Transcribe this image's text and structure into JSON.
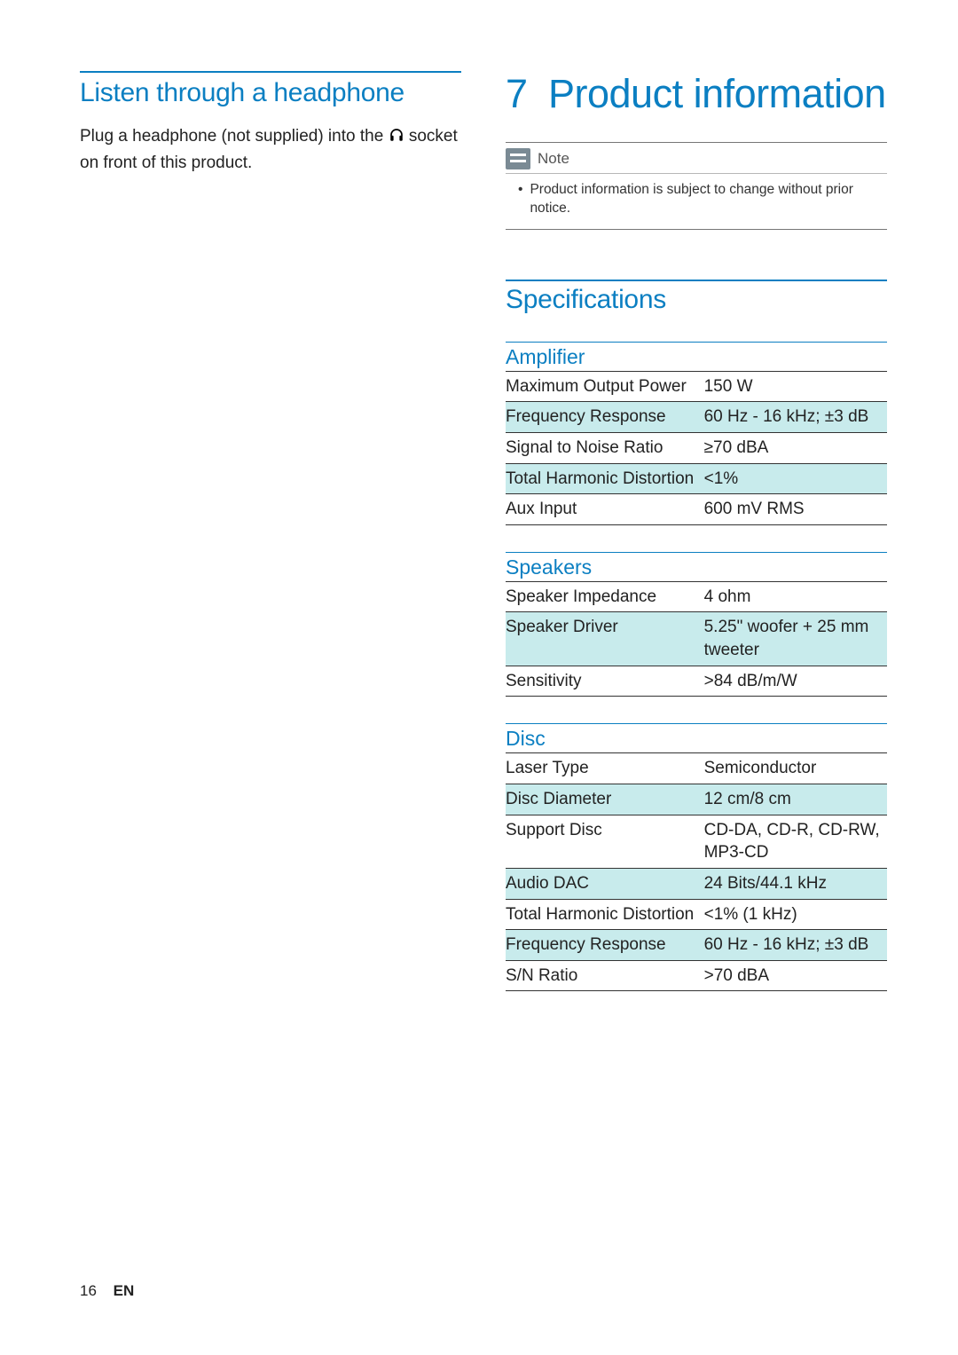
{
  "colors": {
    "accent": "#0b7fc2",
    "alt_row_bg": "#c8ebec",
    "note_icon_bg": "#7a8a94",
    "text": "#222222",
    "background": "#ffffff"
  },
  "left": {
    "heading": "Listen through a headphone",
    "body_before": "Plug a headphone (not supplied) into the ",
    "body_after": " socket on front of this product.",
    "icon_name": "headphone-icon"
  },
  "chapter": {
    "number": "7",
    "title": "Product information"
  },
  "note": {
    "label": "Note",
    "items": [
      "Product information is subject to change without prior notice."
    ]
  },
  "specs_heading": "Specifications",
  "spec_groups": [
    {
      "title": "Amplifier",
      "rows": [
        {
          "k": "Maximum Output Power",
          "v": "150 W",
          "alt": false
        },
        {
          "k": "Frequency Response",
          "v": "60 Hz - 16 kHz; ±3 dB",
          "alt": true
        },
        {
          "k": "Signal to Noise Ratio",
          "v": "≥70 dBA",
          "alt": false
        },
        {
          "k": "Total Harmonic Distortion",
          "v": "<1%",
          "alt": true
        },
        {
          "k": "Aux Input",
          "v": "600 mV RMS",
          "alt": false
        }
      ]
    },
    {
      "title": "Speakers",
      "rows": [
        {
          "k": "Speaker Impedance",
          "v": "4 ohm",
          "alt": false
        },
        {
          "k": "Speaker Driver",
          "v": "5.25\" woofer + 25 mm tweeter",
          "alt": true
        },
        {
          "k": "Sensitivity",
          "v": ">84 dB/m/W",
          "alt": false
        }
      ]
    },
    {
      "title": "Disc",
      "rows": [
        {
          "k": "Laser Type",
          "v": "Semiconductor",
          "alt": false
        },
        {
          "k": "Disc Diameter",
          "v": "12 cm/8 cm",
          "alt": true
        },
        {
          "k": "Support Disc",
          "v": "CD-DA, CD-R, CD-RW, MP3-CD",
          "alt": false
        },
        {
          "k": "Audio DAC",
          "v": "24 Bits/44.1 kHz",
          "alt": true
        },
        {
          "k": "Total Harmonic Distortion",
          "v": "<1% (1 kHz)",
          "alt": false
        },
        {
          "k": "Frequency Response",
          "v": "60 Hz - 16 kHz; ±3 dB",
          "alt": true
        },
        {
          "k": "S/N Ratio",
          "v": ">70 dBA",
          "alt": false
        }
      ]
    }
  ],
  "footer": {
    "page_number": "16",
    "lang": "EN"
  }
}
